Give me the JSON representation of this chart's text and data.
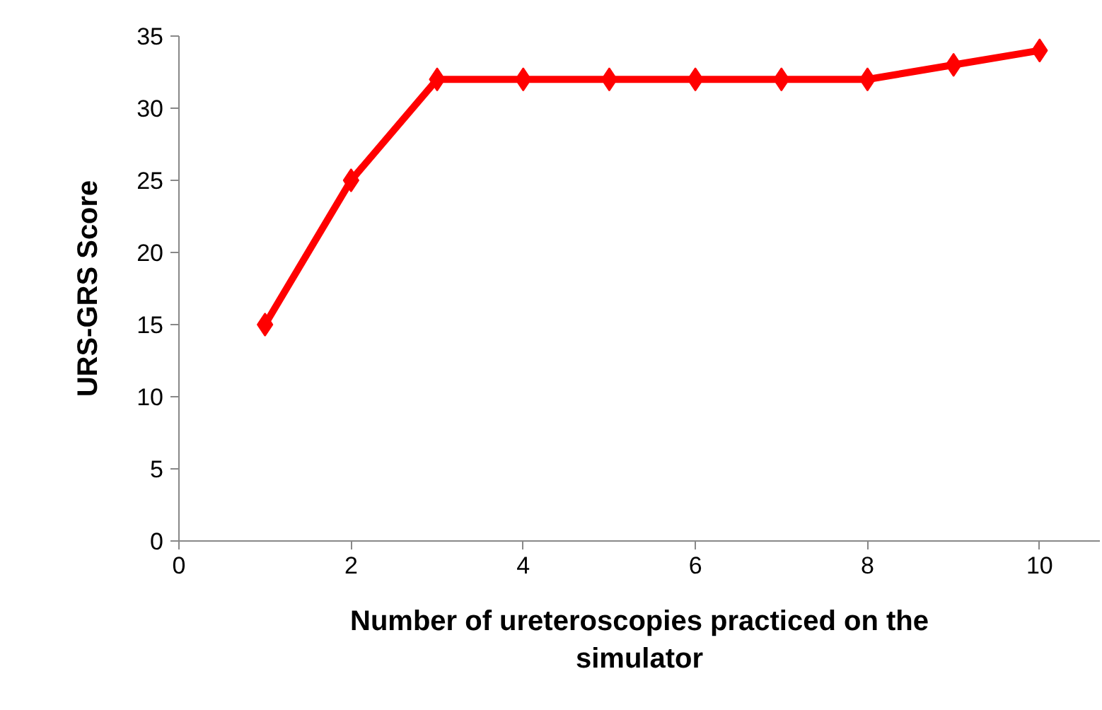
{
  "chart_data": {
    "type": "line",
    "xlabel": "Number of ureteroscopies practiced on the simulator",
    "ylabel": "URS-GRS Score",
    "x": [
      1,
      2,
      3,
      4,
      5,
      6,
      7,
      8,
      9,
      10
    ],
    "series": [
      {
        "color": "#ff0000",
        "values": [
          15,
          25,
          32,
          32,
          32,
          32,
          32,
          32,
          33,
          34
        ]
      }
    ],
    "xlim": [
      0,
      10.7
    ],
    "ylim": [
      0,
      35
    ],
    "xticks": [
      0,
      2,
      4,
      6,
      8,
      10
    ],
    "yticks": [
      0,
      5,
      10,
      15,
      20,
      25,
      30,
      35
    ],
    "grid": false,
    "marker": "diamond",
    "line_style": "solid"
  }
}
